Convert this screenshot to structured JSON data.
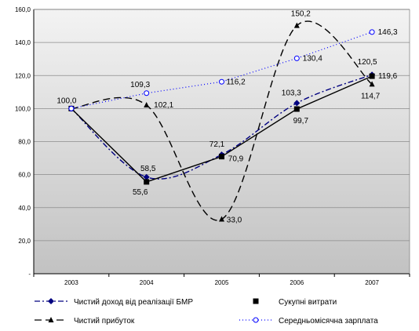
{
  "chart_data": {
    "type": "line",
    "categories": [
      "2003",
      "2004",
      "2005",
      "2006",
      "2007"
    ],
    "ylim": [
      0,
      160
    ],
    "yticks": [
      "-",
      "20,0",
      "40,0",
      "60,0",
      "80,0",
      "100,0",
      "120,0",
      "140,0",
      "160,0"
    ],
    "grid": true,
    "legend_position": "bottom",
    "series": [
      {
        "name": "Чистий доход від реалізації БМР",
        "values": [
          100.0,
          58.5,
          72.1,
          103.3,
          120.5
        ],
        "labels": [
          "100,0",
          "58,5",
          "72,1",
          "103,3",
          "120,5"
        ],
        "color": "#000080",
        "marker": "diamond",
        "dash": "dashdot",
        "smooth": true
      },
      {
        "name": "Сукупні витрати",
        "values": [
          100.0,
          55.6,
          70.9,
          99.7,
          119.6
        ],
        "labels": [
          "",
          "55,6",
          "70,9",
          "99,7",
          "119,6"
        ],
        "color": "#000000",
        "marker": "square",
        "dash": "none",
        "smooth": false
      },
      {
        "name": "Чистий прибуток",
        "values": [
          100.0,
          102.1,
          33.0,
          150.2,
          114.7
        ],
        "labels": [
          "",
          "102,1",
          "33,0",
          "150,2",
          "114,7"
        ],
        "color": "#000000",
        "marker": "triangle",
        "dash": "longdash",
        "smooth": true
      },
      {
        "name": "Середньомісячна зарплата",
        "values": [
          100.0,
          109.3,
          116.2,
          130.4,
          146.3
        ],
        "labels": [
          "",
          "109,3",
          "116,2",
          "130,4",
          "146,3"
        ],
        "color": "#0000ff",
        "marker": "circle",
        "dash": "dotted",
        "smooth": false
      }
    ]
  }
}
